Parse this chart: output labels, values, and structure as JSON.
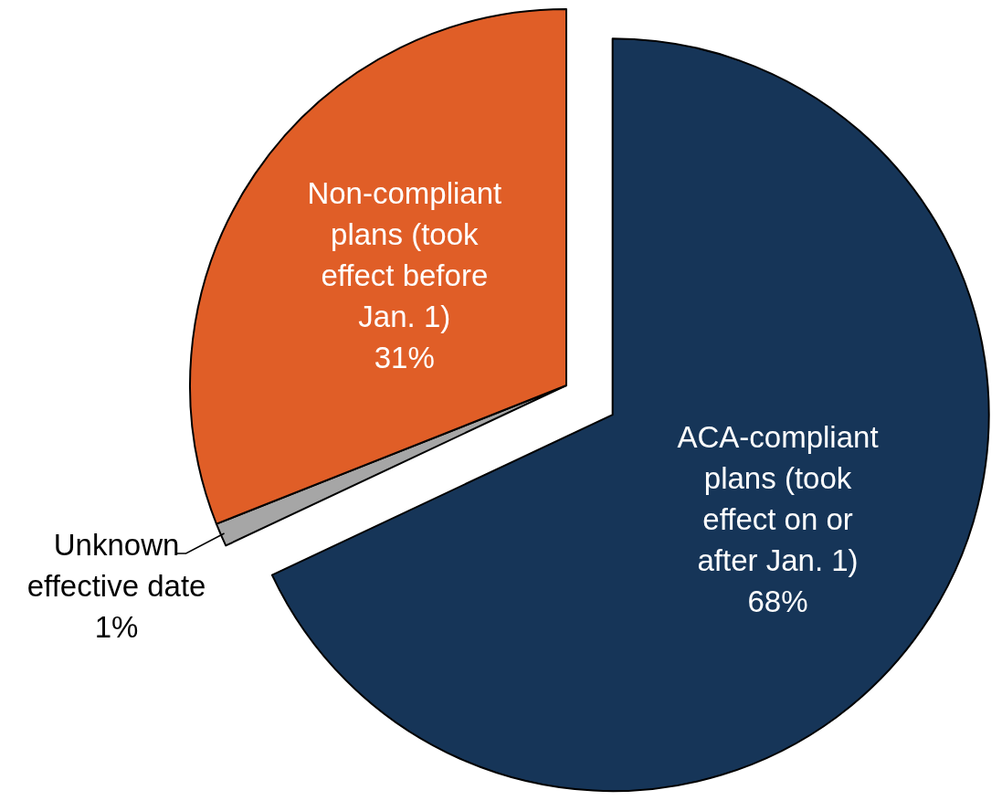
{
  "chart_data": {
    "type": "pie",
    "categories": [
      "ACA-compliant plans (took effect on or after Jan. 1)",
      "Unknown effective date",
      "Non-compliant plans (took effect before Jan. 1)"
    ],
    "values": [
      68,
      1,
      31
    ],
    "colors": [
      "#163558",
      "#a6a6a6",
      "#e05e27"
    ],
    "value_labels": [
      "68%",
      "1%",
      "31%"
    ]
  }
}
